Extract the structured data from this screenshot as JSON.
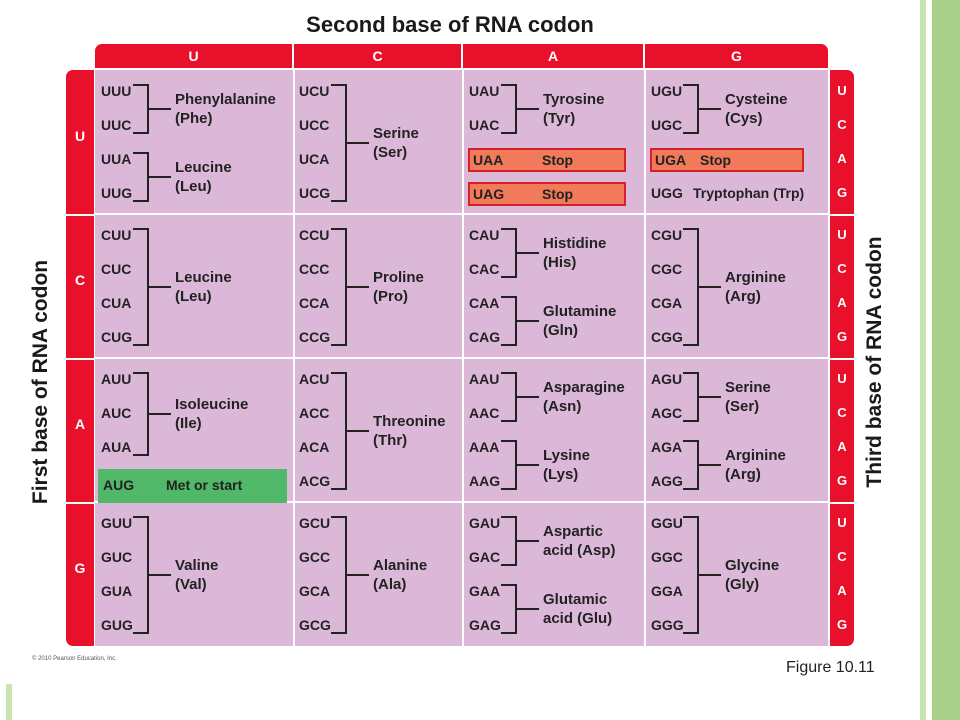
{
  "title_top": "Second base of RNA codon",
  "title_left": "First base of RNA codon",
  "title_right": "Third base of RNA codon",
  "first_bases": [
    "U",
    "C",
    "A",
    "G"
  ],
  "second_bases": [
    "U",
    "C",
    "A",
    "G"
  ],
  "third_bases": [
    "U",
    "C",
    "A",
    "G"
  ],
  "copyright": "© 2010 Pearson Education, Inc.",
  "figure_label": "Figure 10.11",
  "colors": {
    "header_red": "#e8102a",
    "cell_pink": "#dcb8d8",
    "stop_fill": "#f07a5a",
    "start_fill": "#50b868",
    "slide_green": "#a9cf8a"
  },
  "blocks": [
    {
      "codons": [
        "UUU",
        "UUC",
        "UUA",
        "UUG"
      ],
      "groups": [
        {
          "range": [
            0,
            1
          ],
          "name": "Phenylalanine",
          "abbr": "(Phe)"
        },
        {
          "range": [
            2,
            3
          ],
          "name": "Leucine",
          "abbr": "(Leu)"
        }
      ]
    },
    {
      "codons": [
        "UCU",
        "UCC",
        "UCA",
        "UCG"
      ],
      "groups": [
        {
          "range": [
            0,
            3
          ],
          "name": "Serine",
          "abbr": "(Ser)"
        }
      ]
    },
    {
      "codons": [
        "UAU",
        "UAC",
        "UAA",
        "UAG"
      ],
      "groups": [
        {
          "range": [
            0,
            1
          ],
          "name": "Tyrosine",
          "abbr": "(Tyr)"
        }
      ],
      "stops": [
        {
          "index": 2,
          "label": "Stop"
        },
        {
          "index": 3,
          "label": "Stop"
        }
      ]
    },
    {
      "codons": [
        "UGU",
        "UGC",
        "UGA",
        "UGG"
      ],
      "groups": [
        {
          "range": [
            0,
            1
          ],
          "name": "Cysteine",
          "abbr": "(Cys)"
        }
      ],
      "stops": [
        {
          "index": 2,
          "label": "Stop"
        }
      ],
      "singles": [
        {
          "index": 3,
          "text": "Tryptophan (Trp)"
        }
      ]
    },
    {
      "codons": [
        "CUU",
        "CUC",
        "CUA",
        "CUG"
      ],
      "groups": [
        {
          "range": [
            0,
            3
          ],
          "name": "Leucine",
          "abbr": "(Leu)"
        }
      ]
    },
    {
      "codons": [
        "CCU",
        "CCC",
        "CCA",
        "CCG"
      ],
      "groups": [
        {
          "range": [
            0,
            3
          ],
          "name": "Proline",
          "abbr": "(Pro)"
        }
      ]
    },
    {
      "codons": [
        "CAU",
        "CAC",
        "CAA",
        "CAG"
      ],
      "groups": [
        {
          "range": [
            0,
            1
          ],
          "name": "Histidine",
          "abbr": "(His)"
        },
        {
          "range": [
            2,
            3
          ],
          "name": "Glutamine",
          "abbr": "(Gln)"
        }
      ]
    },
    {
      "codons": [
        "CGU",
        "CGC",
        "CGA",
        "CGG"
      ],
      "groups": [
        {
          "range": [
            0,
            3
          ],
          "name": "Arginine",
          "abbr": "(Arg)"
        }
      ]
    },
    {
      "codons": [
        "AUU",
        "AUC",
        "AUA",
        "AUG"
      ],
      "groups": [
        {
          "range": [
            0,
            2
          ],
          "name": "Isoleucine",
          "abbr": "(Ile)"
        }
      ],
      "starts": [
        {
          "index": 3,
          "label": "Met or start"
        }
      ]
    },
    {
      "codons": [
        "ACU",
        "ACC",
        "ACA",
        "ACG"
      ],
      "groups": [
        {
          "range": [
            0,
            3
          ],
          "name": "Threonine",
          "abbr": "(Thr)"
        }
      ]
    },
    {
      "codons": [
        "AAU",
        "AAC",
        "AAA",
        "AAG"
      ],
      "groups": [
        {
          "range": [
            0,
            1
          ],
          "name": "Asparagine",
          "abbr": "(Asn)"
        },
        {
          "range": [
            2,
            3
          ],
          "name": "Lysine",
          "abbr": "(Lys)"
        }
      ]
    },
    {
      "codons": [
        "AGU",
        "AGC",
        "AGA",
        "AGG"
      ],
      "groups": [
        {
          "range": [
            0,
            1
          ],
          "name": "Serine",
          "abbr": "(Ser)"
        },
        {
          "range": [
            2,
            3
          ],
          "name": "Arginine",
          "abbr": "(Arg)"
        }
      ]
    },
    {
      "codons": [
        "GUU",
        "GUC",
        "GUA",
        "GUG"
      ],
      "groups": [
        {
          "range": [
            0,
            3
          ],
          "name": "Valine",
          "abbr": "(Val)"
        }
      ]
    },
    {
      "codons": [
        "GCU",
        "GCC",
        "GCA",
        "GCG"
      ],
      "groups": [
        {
          "range": [
            0,
            3
          ],
          "name": "Alanine",
          "abbr": "(Ala)"
        }
      ]
    },
    {
      "codons": [
        "GAU",
        "GAC",
        "GAA",
        "GAG"
      ],
      "groups": [
        {
          "range": [
            0,
            1
          ],
          "name": "Aspartic",
          "abbr": "acid (Asp)"
        },
        {
          "range": [
            2,
            3
          ],
          "name": "Glutamic",
          "abbr": "acid (Glu)"
        }
      ]
    },
    {
      "codons": [
        "GGU",
        "GGC",
        "GGA",
        "GGG"
      ],
      "groups": [
        {
          "range": [
            0,
            3
          ],
          "name": "Glycine",
          "abbr": "(Gly)"
        }
      ]
    }
  ]
}
